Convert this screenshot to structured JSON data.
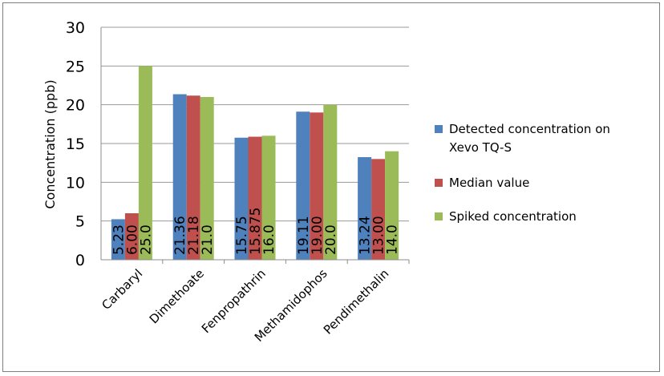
{
  "chart_data": {
    "type": "bar",
    "categories": [
      "Carbaryl",
      "Dimethoate",
      "Fenpropathrin",
      "Methamidophos",
      "Pendimethalin"
    ],
    "series": [
      {
        "name": "Detected concentration on Xevo TQ-S",
        "values": [
          5.23,
          21.36,
          15.75,
          19.11,
          13.24
        ],
        "labels": [
          "5.23",
          "21.36",
          "15.75",
          "19.11",
          "13.24"
        ],
        "color": "#4f81bd"
      },
      {
        "name": "Median value",
        "values": [
          6.0,
          21.18,
          15.875,
          19.0,
          13.0
        ],
        "labels": [
          "6.00",
          "21.18",
          "15.875",
          "19.00",
          "13.00"
        ],
        "color": "#c0504d"
      },
      {
        "name": "Spiked concentration",
        "values": [
          25.0,
          21.0,
          16.0,
          20.0,
          14.0
        ],
        "labels": [
          "25.0",
          "21.0",
          "16.0",
          "20.0",
          "14.0"
        ],
        "color": "#9bbb59"
      }
    ],
    "ylabel": "Concentration (ppb)",
    "xlabel": "",
    "ylim": [
      0,
      30
    ],
    "yticks": [
      0,
      5,
      10,
      15,
      20,
      25,
      30
    ],
    "grid": true,
    "legend_position": "right"
  }
}
